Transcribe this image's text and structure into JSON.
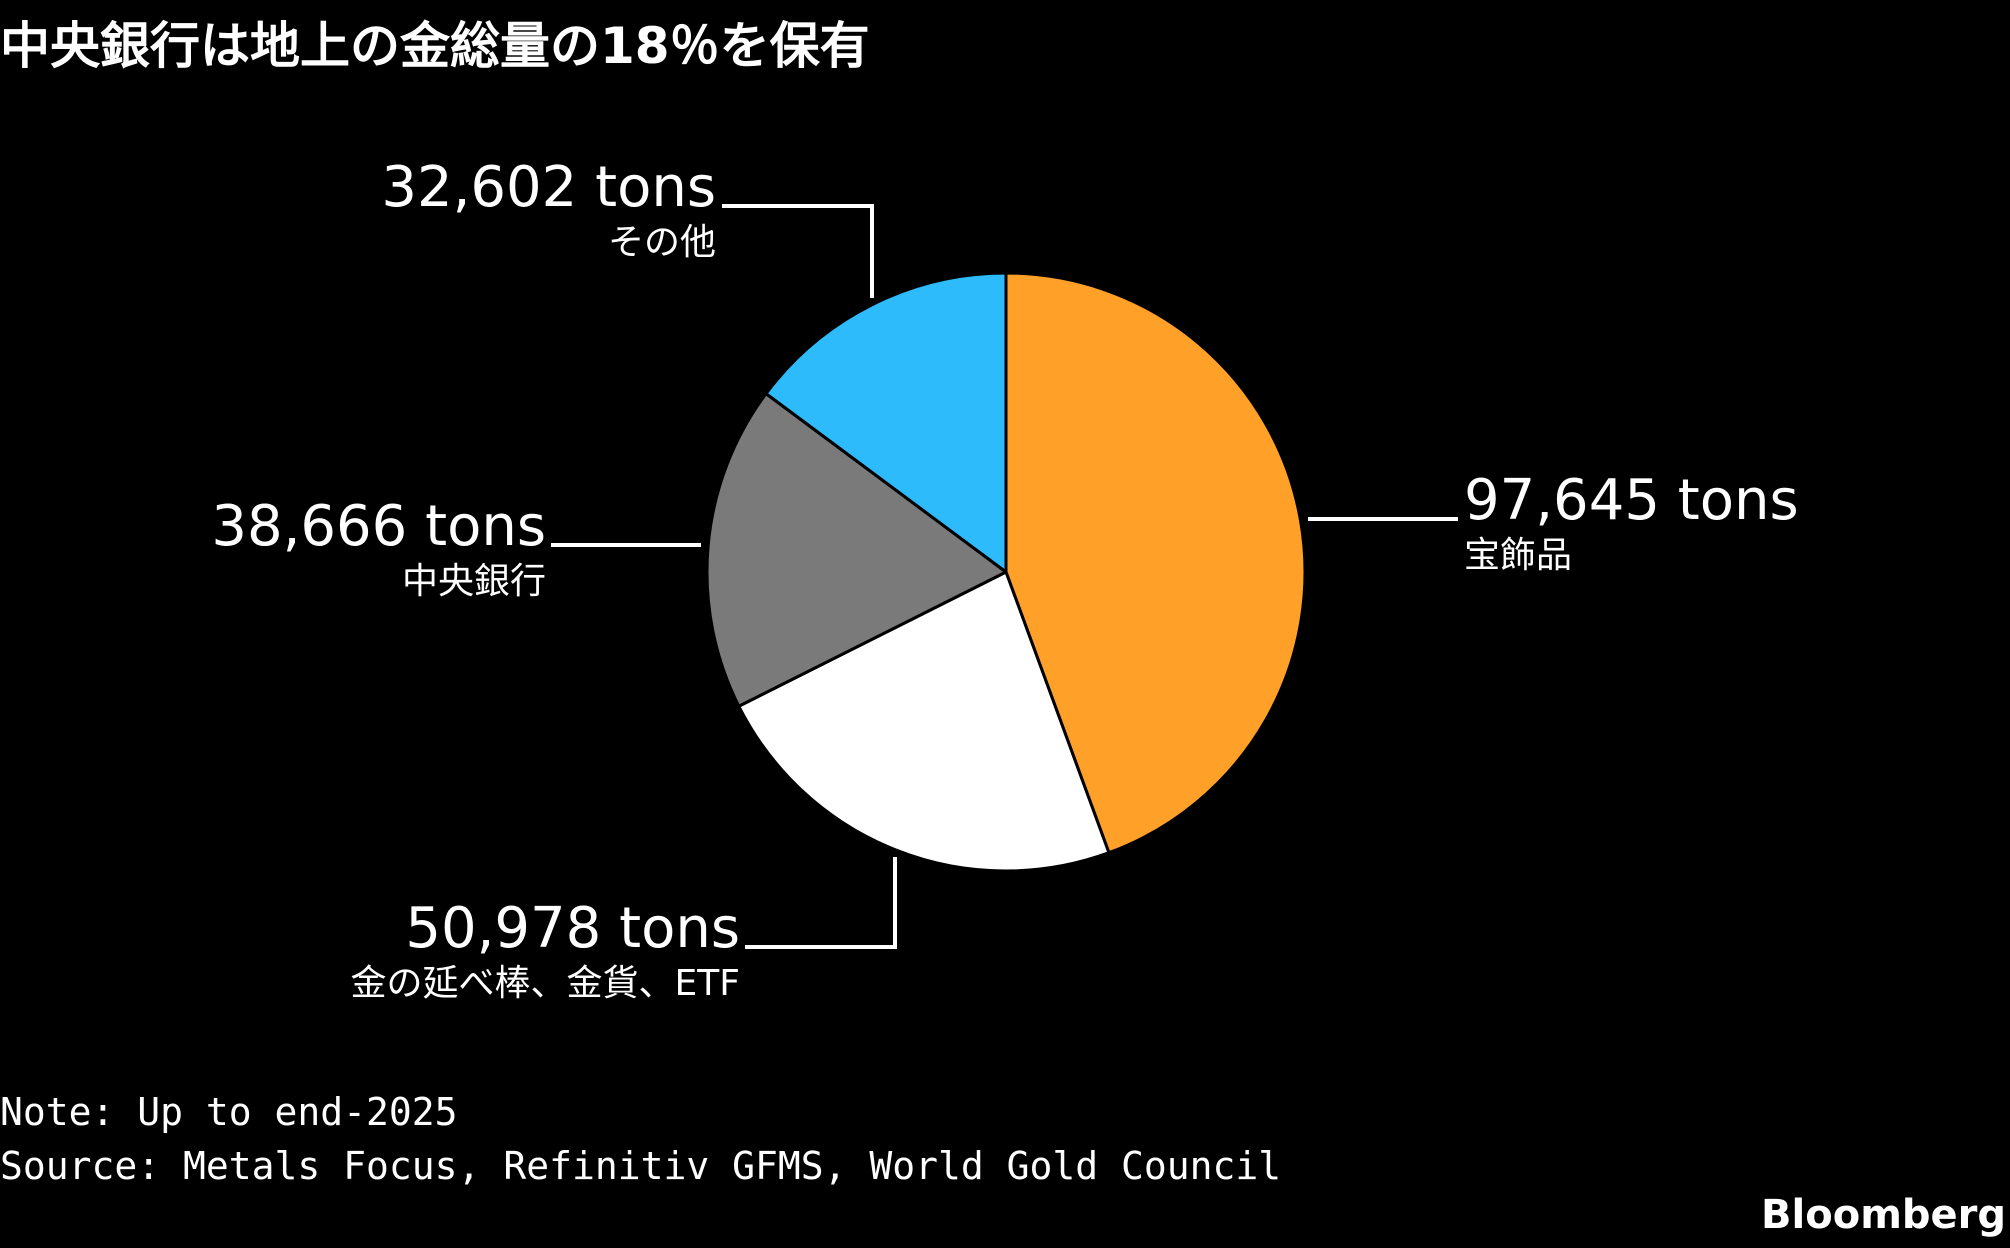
{
  "title": "中央銀行は地上の金総量の18％を保有",
  "note": "Note: Up to end-2025",
  "source": "Source: Metals Focus, Refinitiv GFMS, World Gold Council",
  "brand": "Bloomberg",
  "chart_data": {
    "type": "pie",
    "title": "中央銀行は地上の金総量の18％を保有",
    "unit": "tons",
    "start_angle_deg": 0,
    "direction": "clockwise",
    "slices": [
      {
        "category": "宝飾品",
        "value": 97645,
        "label": "97,645 tons",
        "color": "#FFA028"
      },
      {
        "category": "金の延べ棒、金貨、ETF",
        "value": 50978,
        "label": "50,978 tons",
        "color": "#FFFFFF"
      },
      {
        "category": "中央銀行",
        "value": 38666,
        "label": "38,666 tons",
        "color": "#7A7A7A"
      },
      {
        "category": "その他",
        "value": 32602,
        "label": "32,602 tons",
        "color": "#2EBBFC"
      }
    ]
  }
}
